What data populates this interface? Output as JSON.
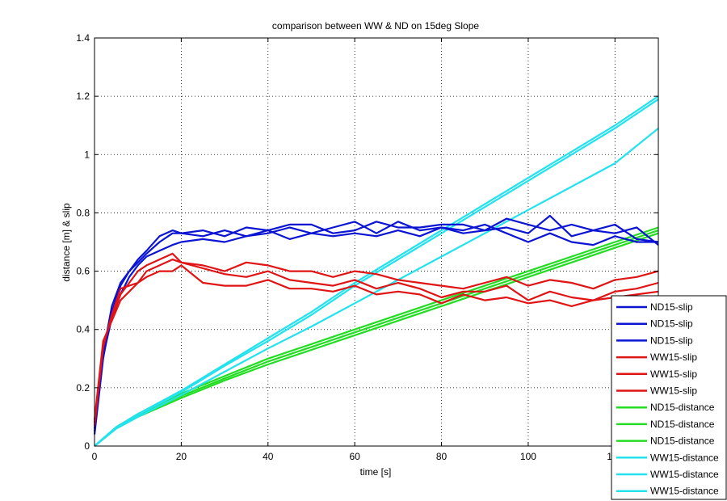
{
  "chart_data": {
    "type": "line",
    "title": "comparison between WW & ND on 15deg Slope",
    "xlabel": "time [s]",
    "ylabel": "distance [m] & slip",
    "xlim": [
      0,
      130
    ],
    "ylim": [
      0,
      1.4
    ],
    "x_ticks": [
      "0",
      "20",
      "40",
      "60",
      "80",
      "100",
      "120"
    ],
    "y_ticks": [
      "0",
      "0.2",
      "0.4",
      "0.6",
      "0.8",
      "1",
      "1.2",
      "1.4"
    ],
    "grid": true,
    "legend_position": "bottom-right",
    "colors": {
      "ND15-slip": "#0a14d2",
      "WW15-slip": "#e01414",
      "ND15-distance": "#22dd22",
      "WW15-distance": "#22e2ee"
    },
    "series": [
      {
        "name": "ND15-slip",
        "group": "ND15-slip",
        "x": [
          0,
          2,
          4,
          6,
          8,
          10,
          12,
          15,
          18,
          20,
          25,
          30,
          35,
          40,
          45,
          50,
          55,
          60,
          65,
          70,
          75,
          80,
          85,
          90,
          95,
          100,
          105,
          110,
          115,
          120,
          125,
          130
        ],
        "y": [
          0.05,
          0.32,
          0.48,
          0.56,
          0.6,
          0.63,
          0.66,
          0.7,
          0.73,
          0.73,
          0.74,
          0.72,
          0.75,
          0.74,
          0.76,
          0.76,
          0.73,
          0.74,
          0.77,
          0.75,
          0.75,
          0.76,
          0.76,
          0.74,
          0.75,
          0.73,
          0.79,
          0.72,
          0.74,
          0.76,
          0.71,
          0.7
        ]
      },
      {
        "name": "ND15-slip",
        "group": "ND15-slip",
        "x": [
          0,
          2,
          4,
          6,
          8,
          10,
          12,
          15,
          18,
          20,
          25,
          30,
          35,
          40,
          45,
          50,
          55,
          60,
          65,
          70,
          75,
          80,
          85,
          90,
          95,
          100,
          105,
          110,
          115,
          120,
          125,
          130
        ],
        "y": [
          0.04,
          0.3,
          0.46,
          0.55,
          0.6,
          0.64,
          0.67,
          0.72,
          0.74,
          0.73,
          0.72,
          0.74,
          0.72,
          0.73,
          0.75,
          0.73,
          0.75,
          0.77,
          0.73,
          0.77,
          0.74,
          0.75,
          0.73,
          0.74,
          0.78,
          0.76,
          0.74,
          0.76,
          0.74,
          0.73,
          0.75,
          0.69
        ]
      },
      {
        "name": "ND15-slip",
        "group": "ND15-slip",
        "x": [
          0,
          2,
          4,
          6,
          8,
          10,
          12,
          15,
          18,
          20,
          25,
          30,
          35,
          40,
          45,
          50,
          55,
          60,
          65,
          70,
          75,
          80,
          85,
          90,
          95,
          100,
          105,
          110,
          115,
          120,
          125,
          130
        ],
        "y": [
          0.06,
          0.31,
          0.44,
          0.52,
          0.58,
          0.62,
          0.65,
          0.67,
          0.69,
          0.7,
          0.71,
          0.7,
          0.72,
          0.74,
          0.71,
          0.73,
          0.72,
          0.73,
          0.72,
          0.74,
          0.72,
          0.75,
          0.74,
          0.76,
          0.73,
          0.7,
          0.73,
          0.7,
          0.69,
          0.72,
          0.7,
          0.7
        ]
      },
      {
        "name": "WW15-slip",
        "group": "WW15-slip",
        "x": [
          0,
          2,
          4,
          6,
          8,
          10,
          12,
          15,
          18,
          20,
          25,
          30,
          35,
          40,
          45,
          50,
          55,
          60,
          65,
          70,
          75,
          80,
          85,
          90,
          95,
          100,
          105,
          110,
          115,
          120,
          125,
          130
        ],
        "y": [
          0.08,
          0.35,
          0.44,
          0.52,
          0.56,
          0.6,
          0.62,
          0.64,
          0.66,
          0.63,
          0.62,
          0.6,
          0.63,
          0.62,
          0.6,
          0.6,
          0.58,
          0.6,
          0.59,
          0.57,
          0.56,
          0.55,
          0.54,
          0.56,
          0.58,
          0.55,
          0.57,
          0.56,
          0.54,
          0.57,
          0.58,
          0.6
        ]
      },
      {
        "name": "WW15-slip",
        "group": "WW15-slip",
        "x": [
          0,
          2,
          4,
          6,
          8,
          10,
          12,
          15,
          18,
          20,
          25,
          30,
          35,
          40,
          45,
          50,
          55,
          60,
          65,
          70,
          75,
          80,
          85,
          90,
          95,
          100,
          105,
          110,
          115,
          120,
          125,
          130
        ],
        "y": [
          0.07,
          0.34,
          0.45,
          0.54,
          0.55,
          0.56,
          0.6,
          0.62,
          0.64,
          0.63,
          0.61,
          0.59,
          0.58,
          0.6,
          0.57,
          0.56,
          0.55,
          0.57,
          0.54,
          0.56,
          0.54,
          0.51,
          0.53,
          0.53,
          0.55,
          0.5,
          0.53,
          0.51,
          0.5,
          0.53,
          0.54,
          0.56
        ]
      },
      {
        "name": "WW15-slip",
        "group": "WW15-slip",
        "x": [
          0,
          2,
          4,
          6,
          8,
          10,
          12,
          15,
          18,
          20,
          25,
          30,
          35,
          40,
          45,
          50,
          55,
          60,
          65,
          70,
          75,
          80,
          85,
          90,
          95,
          100,
          105,
          110,
          115,
          120,
          125,
          130
        ],
        "y": [
          0.09,
          0.36,
          0.43,
          0.5,
          0.53,
          0.56,
          0.58,
          0.6,
          0.6,
          0.62,
          0.56,
          0.55,
          0.55,
          0.57,
          0.54,
          0.54,
          0.53,
          0.55,
          0.52,
          0.53,
          0.52,
          0.49,
          0.52,
          0.5,
          0.51,
          0.49,
          0.5,
          0.48,
          0.5,
          0.51,
          0.52,
          0.53
        ]
      },
      {
        "name": "ND15-distance",
        "group": "ND15-distance",
        "x": [
          0,
          5,
          10,
          20,
          30,
          40,
          50,
          60,
          70,
          80,
          90,
          100,
          110,
          120,
          130
        ],
        "y": [
          0,
          0.065,
          0.11,
          0.18,
          0.24,
          0.3,
          0.35,
          0.4,
          0.45,
          0.5,
          0.55,
          0.6,
          0.65,
          0.7,
          0.75
        ]
      },
      {
        "name": "ND15-distance",
        "group": "ND15-distance",
        "x": [
          0,
          5,
          10,
          20,
          30,
          40,
          50,
          60,
          70,
          80,
          90,
          100,
          110,
          120,
          130
        ],
        "y": [
          0,
          0.063,
          0.105,
          0.172,
          0.232,
          0.29,
          0.34,
          0.39,
          0.44,
          0.49,
          0.54,
          0.59,
          0.64,
          0.69,
          0.74
        ]
      },
      {
        "name": "ND15-distance",
        "group": "ND15-distance",
        "x": [
          0,
          5,
          10,
          20,
          30,
          40,
          50,
          60,
          70,
          80,
          90,
          100,
          110,
          120,
          130
        ],
        "y": [
          0,
          0.06,
          0.1,
          0.165,
          0.225,
          0.28,
          0.33,
          0.38,
          0.43,
          0.48,
          0.53,
          0.58,
          0.63,
          0.68,
          0.73
        ]
      },
      {
        "name": "WW15-distance",
        "group": "WW15-distance",
        "x": [
          0,
          5,
          10,
          20,
          30,
          40,
          50,
          60,
          70,
          80,
          90,
          100,
          110,
          120,
          130
        ],
        "y": [
          0,
          0.065,
          0.11,
          0.19,
          0.28,
          0.37,
          0.46,
          0.56,
          0.65,
          0.74,
          0.83,
          0.92,
          1.01,
          1.1,
          1.2
        ]
      },
      {
        "name": "WW15-distance",
        "group": "WW15-distance",
        "x": [
          0,
          5,
          10,
          20,
          30,
          40,
          50,
          60,
          70,
          80,
          90,
          100,
          110,
          120,
          130
        ],
        "y": [
          0,
          0.063,
          0.107,
          0.185,
          0.275,
          0.36,
          0.45,
          0.55,
          0.64,
          0.73,
          0.82,
          0.91,
          1.0,
          1.09,
          1.19
        ]
      },
      {
        "name": "WW15-distance",
        "group": "WW15-distance",
        "x": [
          0,
          5,
          10,
          20,
          30,
          40,
          50,
          60,
          70,
          80,
          90,
          100,
          110,
          120,
          130
        ],
        "y": [
          0,
          0.06,
          0.1,
          0.175,
          0.255,
          0.335,
          0.41,
          0.49,
          0.57,
          0.65,
          0.73,
          0.81,
          0.89,
          0.97,
          1.09
        ]
      }
    ],
    "legend": [
      "ND15-slip",
      "ND15-slip",
      "ND15-slip",
      "WW15-slip",
      "WW15-slip",
      "WW15-slip",
      "ND15-distance",
      "ND15-distance",
      "ND15-distance",
      "WW15-distance",
      "WW15-distance",
      "WW15-distance"
    ]
  }
}
